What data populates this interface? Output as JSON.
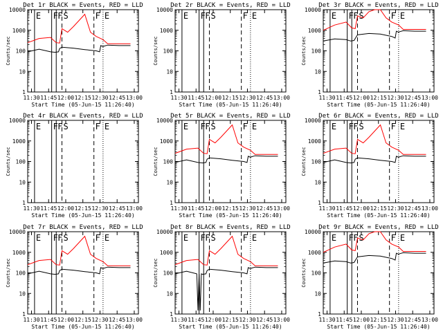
{
  "x_ticks": [
    "11:30",
    "11:45",
    "12:00",
    "12:15",
    "12:30",
    "12:45",
    "13:00"
  ],
  "y_ticks": [
    "1",
    "10",
    "100",
    "1000",
    "10000"
  ],
  "y_label": "Counts/sec",
  "x_label": "Start Time (05-Jun-15 11:26:40)",
  "colors": {
    "events": "#000000",
    "lld": "#ff0000"
  },
  "chart_data": [
    {
      "type": "line",
      "title": "Det 1r BLACK = Events, RED = LLD",
      "xlabel": "Start Time (05-Jun-15 11:26:40)",
      "ylabel": "Counts/sec",
      "x_unit": "minutes since 11:26:40",
      "xlim": [
        0,
        97
      ],
      "ylim": [
        1,
        10000
      ],
      "y_scale": "log",
      "markers": [
        {
          "x": 6,
          "label": "E",
          "style": "solid"
        },
        {
          "x": 21,
          "label": "F",
          "style": "solid"
        },
        {
          "x": 25,
          "label": "F",
          "style": "solid"
        },
        {
          "x": 30,
          "label": "S",
          "style": "dashed"
        },
        {
          "x": 58,
          "label": "F",
          "style": "dashed"
        },
        {
          "x": 66,
          "label": "E",
          "style": "dotted"
        }
      ],
      "series": [
        {
          "name": "Events",
          "x": [
            0,
            10,
            20,
            24,
            27,
            28,
            30,
            40,
            50,
            60,
            63,
            64,
            66,
            67,
            70,
            80,
            90
          ],
          "y": [
            90,
            120,
            90,
            85,
            90,
            130,
            150,
            135,
            115,
            100,
            90,
            180,
            160,
            170,
            190,
            180,
            180
          ]
        },
        {
          "name": "LLD",
          "x": [
            0,
            10,
            20,
            25,
            28,
            30,
            35,
            40,
            45,
            50,
            55,
            60,
            66,
            70,
            80,
            90
          ],
          "y": [
            250,
            400,
            450,
            250,
            240,
            1200,
            800,
            1500,
            3000,
            6000,
            800,
            500,
            350,
            220,
            220,
            220
          ]
        }
      ]
    },
    {
      "type": "line",
      "title": "Det 2r BLACK = Events, RED = LLD",
      "xlabel": "Start Time (05-Jun-15 11:26:40)",
      "ylabel": "Counts/sec",
      "x_unit": "minutes since 11:26:40",
      "xlim": [
        0,
        97
      ],
      "ylim": [
        1,
        10000
      ],
      "y_scale": "log",
      "markers": [
        {
          "x": 6,
          "label": "E",
          "style": "solid"
        },
        {
          "x": 21,
          "label": "F",
          "style": "solid"
        },
        {
          "x": 25,
          "label": "F",
          "style": "solid"
        },
        {
          "x": 30,
          "label": "S",
          "style": "dashed"
        },
        {
          "x": 58,
          "label": "F",
          "style": "dashed"
        },
        {
          "x": 66,
          "label": "E",
          "style": "dotted"
        }
      ],
      "series": []
    },
    {
      "type": "line",
      "title": "Det 3r BLACK = Events, RED = LLD",
      "xlabel": "Start Time (05-Jun-15 11:26:40)",
      "ylabel": "Counts/sec",
      "x_unit": "minutes since 11:26:40",
      "xlim": [
        0,
        97
      ],
      "ylim": [
        1,
        10000
      ],
      "y_scale": "log",
      "markers": [
        {
          "x": 6,
          "label": "E",
          "style": "solid"
        },
        {
          "x": 21,
          "label": "F",
          "style": "solid"
        },
        {
          "x": 25,
          "label": "F",
          "style": "solid"
        },
        {
          "x": 30,
          "label": "S",
          "style": "dashed"
        },
        {
          "x": 58,
          "label": "F",
          "style": "dashed"
        },
        {
          "x": 66,
          "label": "E",
          "style": "dotted"
        }
      ],
      "series": [
        {
          "name": "Events",
          "x": [
            0,
            10,
            20,
            24,
            27,
            28,
            30,
            40,
            50,
            60,
            63,
            64,
            66,
            67,
            70,
            80,
            90
          ],
          "y": [
            300,
            380,
            350,
            300,
            320,
            400,
            600,
            700,
            650,
            500,
            420,
            900,
            800,
            850,
            950,
            900,
            900
          ]
        },
        {
          "name": "LLD",
          "x": [
            0,
            10,
            20,
            25,
            28,
            30,
            35,
            40,
            45,
            50,
            55,
            60,
            66,
            70,
            80,
            90
          ],
          "y": [
            1000,
            1800,
            2500,
            1300,
            1200,
            5000,
            4000,
            8000,
            10000,
            10000,
            4000,
            2500,
            1800,
            1100,
            1100,
            1100
          ]
        }
      ]
    },
    {
      "type": "line",
      "title": "Det 4r BLACK = Events, RED = LLD",
      "xlabel": "Start Time (05-Jun-15 11:26:40)",
      "ylabel": "Counts/sec",
      "x_unit": "minutes since 11:26:40",
      "xlim": [
        0,
        97
      ],
      "ylim": [
        1,
        10000
      ],
      "y_scale": "log",
      "markers": [
        {
          "x": 6,
          "label": "E",
          "style": "solid"
        },
        {
          "x": 21,
          "label": "F",
          "style": "solid"
        },
        {
          "x": 25,
          "label": "F",
          "style": "solid"
        },
        {
          "x": 30,
          "label": "S",
          "style": "dashed"
        },
        {
          "x": 58,
          "label": "F",
          "style": "dashed"
        },
        {
          "x": 66,
          "label": "E",
          "style": "dotted"
        }
      ],
      "series": []
    },
    {
      "type": "line",
      "title": "Det 5r BLACK = Events, RED = LLD",
      "xlabel": "Start Time (05-Jun-15 11:26:40)",
      "ylabel": "Counts/sec",
      "x_unit": "minutes since 11:26:40",
      "xlim": [
        0,
        97
      ],
      "ylim": [
        1,
        10000
      ],
      "y_scale": "log",
      "markers": [
        {
          "x": 6,
          "label": "E",
          "style": "solid"
        },
        {
          "x": 21,
          "label": "F",
          "style": "solid"
        },
        {
          "x": 25,
          "label": "F",
          "style": "solid"
        },
        {
          "x": 30,
          "label": "S",
          "style": "dashed"
        },
        {
          "x": 58,
          "label": "F",
          "style": "dashed"
        },
        {
          "x": 66,
          "label": "E",
          "style": "dotted"
        }
      ],
      "series": [
        {
          "name": "Events",
          "x": [
            0,
            10,
            20,
            24,
            27,
            28,
            30,
            40,
            50,
            60,
            63,
            64,
            66,
            67,
            70,
            80,
            90
          ],
          "y": [
            90,
            120,
            90,
            85,
            90,
            130,
            150,
            135,
            115,
            100,
            90,
            180,
            160,
            170,
            190,
            180,
            180
          ]
        },
        {
          "name": "LLD",
          "x": [
            0,
            10,
            20,
            25,
            28,
            30,
            35,
            40,
            45,
            50,
            55,
            60,
            66,
            70,
            80,
            90
          ],
          "y": [
            250,
            400,
            450,
            250,
            240,
            1200,
            800,
            1500,
            3000,
            6000,
            800,
            500,
            350,
            220,
            220,
            220
          ]
        }
      ]
    },
    {
      "type": "line",
      "title": "Det 6r BLACK = Events, RED = LLD",
      "xlabel": "Start Time (05-Jun-15 11:26:40)",
      "ylabel": "Counts/sec",
      "x_unit": "minutes since 11:26:40",
      "xlim": [
        0,
        97
      ],
      "ylim": [
        1,
        10000
      ],
      "y_scale": "log",
      "markers": [
        {
          "x": 6,
          "label": "E",
          "style": "solid"
        },
        {
          "x": 21,
          "label": "F",
          "style": "solid"
        },
        {
          "x": 25,
          "label": "F",
          "style": "solid"
        },
        {
          "x": 30,
          "label": "S",
          "style": "dashed"
        },
        {
          "x": 58,
          "label": "F",
          "style": "dashed"
        },
        {
          "x": 66,
          "label": "E",
          "style": "dotted"
        }
      ],
      "series": [
        {
          "name": "Events",
          "x": [
            0,
            10,
            20,
            24,
            27,
            28,
            30,
            40,
            50,
            60,
            63,
            64,
            66,
            67,
            70,
            80,
            90
          ],
          "y": [
            90,
            120,
            90,
            85,
            90,
            130,
            150,
            135,
            115,
            100,
            90,
            180,
            160,
            170,
            190,
            180,
            180
          ]
        },
        {
          "name": "LLD",
          "x": [
            0,
            10,
            20,
            25,
            28,
            30,
            35,
            40,
            45,
            50,
            55,
            60,
            66,
            70,
            80,
            90
          ],
          "y": [
            250,
            400,
            450,
            250,
            240,
            1200,
            800,
            1500,
            3000,
            6000,
            800,
            500,
            350,
            220,
            220,
            220
          ]
        }
      ]
    },
    {
      "type": "line",
      "title": "Det 7r BLACK = Events, RED = LLD",
      "xlabel": "Start Time (05-Jun-15 11:26:40)",
      "ylabel": "Counts/sec",
      "x_unit": "minutes since 11:26:40",
      "xlim": [
        0,
        97
      ],
      "ylim": [
        1,
        10000
      ],
      "y_scale": "log",
      "markers": [
        {
          "x": 6,
          "label": "E",
          "style": "solid"
        },
        {
          "x": 21,
          "label": "F",
          "style": "solid"
        },
        {
          "x": 25,
          "label": "F",
          "style": "solid"
        },
        {
          "x": 30,
          "label": "S",
          "style": "dashed"
        },
        {
          "x": 58,
          "label": "F",
          "style": "dashed"
        },
        {
          "x": 66,
          "label": "E",
          "style": "dotted"
        }
      ],
      "series": [
        {
          "name": "Events",
          "x": [
            0,
            10,
            20,
            24,
            27,
            28,
            30,
            40,
            50,
            60,
            63,
            64,
            66,
            67,
            70,
            80,
            90
          ],
          "y": [
            90,
            120,
            90,
            85,
            90,
            130,
            150,
            135,
            115,
            100,
            90,
            180,
            160,
            170,
            190,
            180,
            180
          ]
        },
        {
          "name": "LLD",
          "x": [
            0,
            10,
            20,
            25,
            28,
            30,
            35,
            40,
            45,
            50,
            55,
            60,
            66,
            70,
            80,
            90
          ],
          "y": [
            250,
            400,
            450,
            250,
            240,
            1200,
            800,
            1500,
            3000,
            6000,
            800,
            500,
            350,
            220,
            220,
            220
          ]
        }
      ]
    },
    {
      "type": "line",
      "title": "Det 8r BLACK = Events, RED = LLD",
      "xlabel": "Start Time (05-Jun-15 11:26:40)",
      "ylabel": "Counts/sec",
      "x_unit": "minutes since 11:26:40",
      "xlim": [
        0,
        97
      ],
      "ylim": [
        1,
        10000
      ],
      "y_scale": "log",
      "markers": [
        {
          "x": 6,
          "label": "E",
          "style": "solid"
        },
        {
          "x": 21,
          "label": "F",
          "style": "solid"
        },
        {
          "x": 25,
          "label": "F",
          "style": "solid"
        },
        {
          "x": 30,
          "label": "S",
          "style": "dashed"
        },
        {
          "x": 58,
          "label": "F",
          "style": "dashed"
        },
        {
          "x": 66,
          "label": "E",
          "style": "dotted"
        }
      ],
      "series": [
        {
          "name": "Events",
          "x": [
            0,
            10,
            19,
            20,
            21,
            22,
            23,
            24,
            27,
            28,
            30,
            40,
            50,
            60,
            63,
            64,
            66,
            67,
            70,
            80,
            90
          ],
          "y": [
            90,
            120,
            90,
            1.5,
            90,
            1.5,
            90,
            85,
            90,
            130,
            150,
            135,
            115,
            100,
            90,
            180,
            160,
            170,
            190,
            180,
            180
          ]
        },
        {
          "name": "LLD",
          "x": [
            0,
            10,
            20,
            25,
            28,
            30,
            35,
            40,
            45,
            50,
            55,
            60,
            66,
            70,
            80,
            90
          ],
          "y": [
            250,
            400,
            450,
            250,
            240,
            1200,
            800,
            1500,
            3000,
            6000,
            800,
            500,
            350,
            220,
            220,
            220
          ]
        }
      ]
    },
    {
      "type": "line",
      "title": "Det 9r BLACK = Events, RED = LLD",
      "xlabel": "Start Time (05-Jun-15 11:26:40)",
      "ylabel": "Counts/sec",
      "x_unit": "minutes since 11:26:40",
      "xlim": [
        0,
        97
      ],
      "ylim": [
        1,
        10000
      ],
      "y_scale": "log",
      "markers": [
        {
          "x": 6,
          "label": "E",
          "style": "solid"
        },
        {
          "x": 21,
          "label": "F",
          "style": "solid"
        },
        {
          "x": 25,
          "label": "F",
          "style": "solid"
        },
        {
          "x": 30,
          "label": "S",
          "style": "dashed"
        },
        {
          "x": 58,
          "label": "F",
          "style": "dashed"
        },
        {
          "x": 66,
          "label": "E",
          "style": "dotted"
        }
      ],
      "series": [
        {
          "name": "Events",
          "x": [
            0,
            10,
            20,
            24,
            27,
            28,
            30,
            40,
            50,
            60,
            63,
            64,
            66,
            67,
            70,
            80,
            90
          ],
          "y": [
            300,
            380,
            350,
            300,
            320,
            400,
            600,
            700,
            650,
            500,
            420,
            900,
            800,
            850,
            950,
            900,
            900
          ]
        },
        {
          "name": "LLD",
          "x": [
            0,
            10,
            20,
            25,
            28,
            30,
            35,
            40,
            45,
            50,
            55,
            60,
            66,
            70,
            80,
            90
          ],
          "y": [
            1000,
            1800,
            2500,
            1300,
            1200,
            5000,
            4000,
            8000,
            10000,
            10000,
            4000,
            2500,
            1800,
            1100,
            1100,
            1100
          ]
        }
      ]
    }
  ]
}
